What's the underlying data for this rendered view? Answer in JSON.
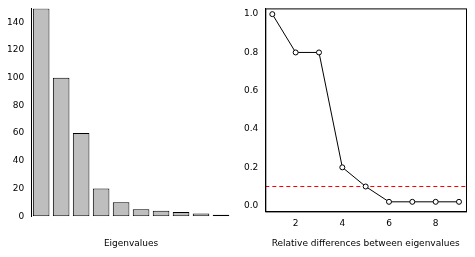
{
  "chart_data": [
    {
      "type": "bar",
      "x_label": "Eigenvalues",
      "categories": [
        null,
        null,
        null,
        null,
        null,
        null,
        null,
        null,
        null,
        null
      ],
      "values": [
        150,
        100,
        60,
        20,
        10,
        5,
        4,
        3,
        2,
        1
      ],
      "color": "#bebebe",
      "ylim": [
        0,
        150
      ],
      "yticks": [
        0,
        20,
        40,
        60,
        80,
        100,
        120,
        140
      ],
      "grid": false,
      "tick_labels": "y"
    },
    {
      "type": "line",
      "x_label": "Relative differences between eigenvalues",
      "x": [
        1,
        2,
        3,
        4,
        5,
        6,
        7,
        8,
        9
      ],
      "values": [
        1.0,
        0.8,
        0.8,
        0.2,
        0.1,
        0.02,
        0.02,
        0.02,
        0.02
      ],
      "color": "#000000",
      "marker": "circle",
      "line_style": "solid",
      "xlim": [
        0.7,
        9.3
      ],
      "xticks": [
        2,
        4,
        6,
        8
      ],
      "ylim": [
        -0.03,
        1.03
      ],
      "yticks": [
        {
          "value": 0,
          "label": "0.0"
        },
        0.2,
        0.4,
        0.6,
        0.8,
        {
          "value": 1,
          "label": "1.0"
        }
      ],
      "hlines": [
        {
          "value": 0.1,
          "color": "#ff0000",
          "line_style": "dashed"
        }
      ],
      "grid": false
    }
  ]
}
